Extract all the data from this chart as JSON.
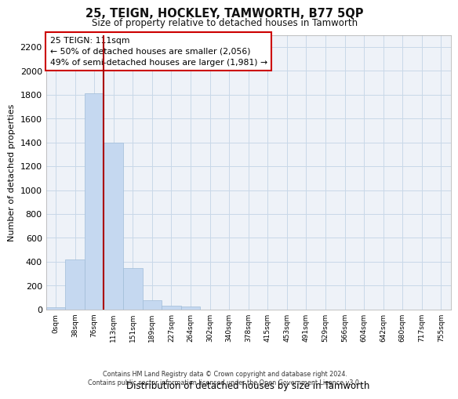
{
  "title": "25, TEIGN, HOCKLEY, TAMWORTH, B77 5QP",
  "subtitle": "Size of property relative to detached houses in Tamworth",
  "xlabel": "Distribution of detached houses by size in Tamworth",
  "ylabel": "Number of detached properties",
  "bar_labels": [
    "0sqm",
    "38sqm",
    "76sqm",
    "113sqm",
    "151sqm",
    "189sqm",
    "227sqm",
    "264sqm",
    "302sqm",
    "340sqm",
    "378sqm",
    "415sqm",
    "453sqm",
    "491sqm",
    "529sqm",
    "566sqm",
    "604sqm",
    "642sqm",
    "680sqm",
    "717sqm",
    "755sqm"
  ],
  "bar_values": [
    20,
    420,
    1810,
    1400,
    350,
    80,
    30,
    25,
    0,
    0,
    0,
    0,
    0,
    0,
    0,
    0,
    0,
    0,
    0,
    0,
    0
  ],
  "bar_color": "#c5d8f0",
  "bar_edgecolor": "#a0bcd8",
  "grid_color": "#c8d8e8",
  "background_color": "#eef2f8",
  "vline_color": "#aa0000",
  "vline_x": 2.5,
  "annotation_text": "25 TEIGN: 111sqm\n← 50% of detached houses are smaller (2,056)\n49% of semi-detached houses are larger (1,981) →",
  "annotation_box_color": "#ffffff",
  "annotation_box_edgecolor": "#cc0000",
  "ylim": [
    0,
    2300
  ],
  "yticks": [
    0,
    200,
    400,
    600,
    800,
    1000,
    1200,
    1400,
    1600,
    1800,
    2000,
    2200
  ],
  "footer_line1": "Contains HM Land Registry data © Crown copyright and database right 2024.",
  "footer_line2": "Contains public sector information licensed under the Open Government Licence v3.0."
}
